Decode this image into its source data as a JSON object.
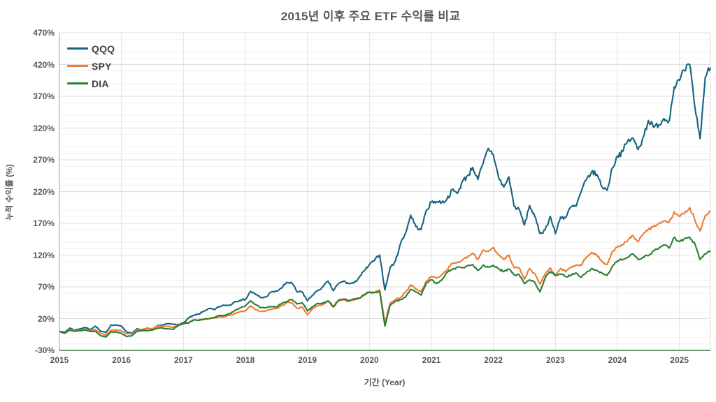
{
  "title": "2015년 이후 주요 ETF 수익률 비교",
  "axes": {
    "y_label": "누적 수익률 (%)",
    "x_label": "기간 (Year)",
    "y_ticks": [
      "470%",
      "420%",
      "370%",
      "320%",
      "270%",
      "220%",
      "170%",
      "120%",
      "70%",
      "20%",
      "-30%"
    ],
    "y_tick_values": [
      470,
      420,
      370,
      320,
      270,
      220,
      170,
      120,
      70,
      20,
      -30
    ],
    "x_ticks": [
      "2015",
      "2016",
      "2017",
      "2018",
      "2019",
      "2020",
      "2021",
      "2022",
      "2023",
      "2024",
      "2025"
    ],
    "x_tick_values": [
      2015,
      2016,
      2017,
      2018,
      2019,
      2020,
      2021,
      2022,
      2023,
      2024,
      2025
    ]
  },
  "legend": [
    {
      "label": "QQQ",
      "color": "#176380"
    },
    {
      "label": "SPY",
      "color": "#ec7d33"
    },
    {
      "label": "DIA",
      "color": "#2b7d32"
    }
  ],
  "colors": {
    "qqq": "#176380",
    "spy": "#ec7d33",
    "dia": "#2b7d32",
    "axis_bottom": "#3e8048",
    "axis_left": "#b5cdb0",
    "grid_major": "#dcdcdc",
    "grid_minor": "#f2f2f2",
    "grid_vertical": "#e3e3e3",
    "text": "#595959"
  },
  "chart_data": {
    "type": "line",
    "title": "2015년 이후 주요 ETF 수익률 비교",
    "xlabel": "기간 (Year)",
    "ylabel": "누적 수익률 (%)",
    "xlim": [
      2015,
      2025.5
    ],
    "ylim": [
      -30,
      470
    ],
    "y_tick_step": 50,
    "y_minor_step": 10,
    "grid": true,
    "legend_position": "top-left",
    "x_start": 2015.0,
    "x_step": 0.0833333,
    "x_unit": "year (monthly cumulative return points, % since Jan 2015)",
    "series": [
      {
        "name": "QQQ",
        "color": "#176380",
        "values": [
          0,
          -2,
          5,
          2,
          4,
          6,
          3,
          8,
          0,
          -2,
          10,
          10,
          8,
          -1,
          -3,
          4,
          1,
          5,
          2,
          9,
          10,
          12,
          11,
          11,
          13,
          21,
          25,
          27,
          32,
          36,
          34,
          39,
          41,
          41,
          47,
          49,
          50,
          63,
          58,
          53,
          54,
          62,
          63,
          68,
          77,
          76,
          62,
          62,
          48,
          57,
          64,
          70,
          79,
          64,
          75,
          79,
          75,
          76,
          85,
          95,
          105,
          112,
          120,
          65,
          100,
          110,
          138,
          155,
          183,
          165,
          160,
          190,
          204,
          204,
          203,
          208,
          223,
          217,
          236,
          245,
          258,
          239,
          264,
          288,
          278,
          242,
          227,
          243,
          197,
          192,
          167,
          198,
          181,
          154,
          160,
          181,
          154,
          180,
          179,
          196,
          197,
          220,
          239,
          251,
          247,
          228,
          222,
          257,
          276,
          283,
          300,
          304,
          286,
          306,
          332,
          321,
          325,
          335,
          331,
          385,
          395,
          410,
          420,
          353,
          303,
          400,
          415
        ]
      },
      {
        "name": "SPY",
        "color": "#ec7d33",
        "values": [
          0,
          -3,
          3,
          1,
          2,
          3,
          1,
          3,
          -3,
          -6,
          2,
          2,
          1,
          -4,
          -4,
          2,
          3,
          4,
          4,
          8,
          8,
          8,
          6,
          10,
          12,
          14,
          18,
          18,
          19,
          20,
          21,
          23,
          23,
          25,
          28,
          31,
          32,
          40,
          34,
          31,
          32,
          35,
          36,
          40,
          45,
          45,
          36,
          38,
          26,
          36,
          40,
          42,
          48,
          38,
          48,
          50,
          47,
          49,
          52,
          57,
          61,
          61,
          65,
          13,
          44,
          50,
          53,
          62,
          73,
          67,
          62,
          79,
          86,
          84,
          89,
          97,
          107,
          108,
          112,
          117,
          123,
          113,
          128,
          126,
          132,
          120,
          113,
          120,
          100,
          100,
          82,
          99,
          91,
          74,
          90,
          100,
          87,
          99,
          94,
          101,
          104,
          104,
          117,
          124,
          120,
          110,
          105,
          125,
          133,
          136,
          143,
          151,
          141,
          153,
          161,
          165,
          170,
          174,
          172,
          188,
          181,
          186,
          195,
          175,
          158,
          182,
          190
        ]
      },
      {
        "name": "DIA",
        "color": "#2b7d32",
        "values": [
          0,
          -3,
          2,
          0,
          1,
          2,
          0,
          0,
          -7,
          -9,
          -1,
          -1,
          -3,
          -8,
          -7,
          0,
          1,
          1,
          2,
          5,
          5,
          4,
          3,
          9,
          12,
          13,
          18,
          17,
          19,
          20,
          22,
          25,
          25,
          28,
          33,
          37,
          40,
          48,
          42,
          37,
          37,
          39,
          38,
          44,
          47,
          50,
          43,
          45,
          32,
          39,
          44,
          44,
          48,
          39,
          49,
          51,
          48,
          51,
          52,
          58,
          62,
          61,
          63,
          8,
          41,
          47,
          50,
          54,
          66,
          62,
          57,
          76,
          81,
          75,
          81,
          93,
          97,
          101,
          100,
          103,
          105,
          96,
          104,
          101,
          104,
          98,
          94,
          98,
          89,
          89,
          75,
          81,
          77,
          62,
          84,
          94,
          88,
          90,
          86,
          88,
          92,
          85,
          93,
          99,
          96,
          92,
          88,
          102,
          111,
          113,
          116,
          122,
          113,
          117,
          119,
          127,
          131,
          136,
          131,
          148,
          141,
          146,
          148,
          138,
          113,
          122,
          127
        ]
      }
    ]
  }
}
